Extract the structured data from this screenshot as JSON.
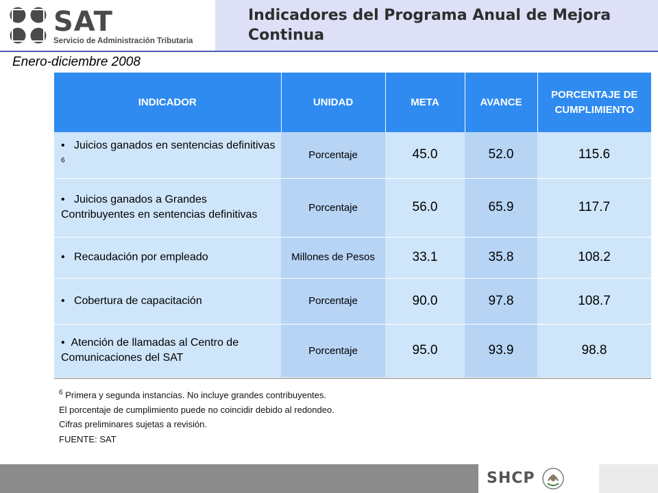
{
  "header": {
    "logo_text": "SAT",
    "logo_subtitle": "Servicio de Administración Tributaria",
    "title": "Indicadores del Programa Anual de Mejora Continua"
  },
  "subtitle": "Enero-diciembre  2008",
  "table": {
    "columns": [
      "INDICADOR",
      "UNIDAD",
      "META",
      "AVANCE",
      "PORCENTAJE DE CUMPLIMIENTO"
    ],
    "rows": [
      {
        "indicador": "Juicios ganados en sentencias definitivas",
        "sup": "6",
        "unidad": "Porcentaje",
        "meta": "45.0",
        "avance": "52.0",
        "porcentaje": "115.6"
      },
      {
        "indicador": "Juicios ganados a Grandes Contribuyentes en sentencias definitivas",
        "sup": "",
        "unidad": "Porcentaje",
        "meta": "56.0",
        "avance": "65.9",
        "porcentaje": "117.7"
      },
      {
        "indicador": "Recaudación por empleado",
        "sup": "",
        "unidad": "Millones de Pesos",
        "meta": "33.1",
        "avance": "35.8",
        "porcentaje": "108.2"
      },
      {
        "indicador": "Cobertura de capacitación",
        "sup": "",
        "unidad": "Porcentaje",
        "meta": "90.0",
        "avance": "97.8",
        "porcentaje": "108.7"
      },
      {
        "indicador": "Atención de llamadas al Centro de Comunicaciones del SAT",
        "sup": "",
        "unidad": "Porcentaje",
        "meta": "95.0",
        "avance": "93.9",
        "porcentaje": "98.8"
      }
    ]
  },
  "notes": {
    "note_sup": "6",
    "note1": "Primera y segunda instancias. No incluye grandes contribuyentes.",
    "note2": "El porcentaje de cumplimiento puede no coincidir debido al redondeo.",
    "note3": "Cifras preliminares sujetas a revisión.",
    "source": "FUENTE: SAT"
  },
  "footer": {
    "brand": "SHCP"
  }
}
